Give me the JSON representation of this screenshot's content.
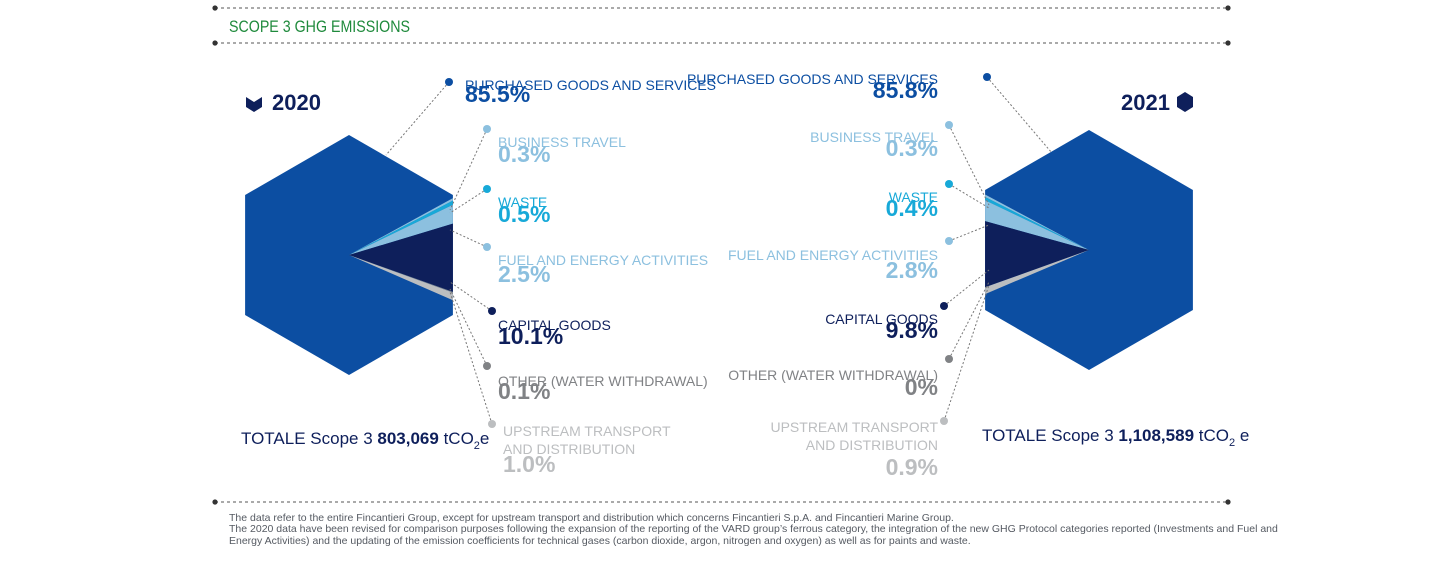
{
  "header": {
    "title": "SCOPE 3 GHG EMISSIONS"
  },
  "colors": {
    "title_green": "#1f8a3c",
    "navy": "#0e1f5b",
    "blue": "#0c4ea2",
    "light_blue": "#8cc0df",
    "cyan": "#17a9d8",
    "gray": "#808285",
    "light_gray": "#bcbec0",
    "divider": "#555555"
  },
  "chart_data": [
    {
      "type": "pie",
      "title": "2020",
      "categories": [
        "PURCHASED GOODS AND SERVICES",
        "BUSINESS TRAVEL",
        "WASTE",
        "FUEL AND ENERGY ACTIVITIES",
        "CAPITAL GOODS",
        "OTHER (WATER WITHDRAWAL)",
        "UPSTREAM TRANSPORT AND DISTRIBUTION"
      ],
      "value_labels": [
        "85.5%",
        "0.3%",
        "0.5%",
        "2.5%",
        "10.1%",
        "0.1%",
        "1.0%"
      ],
      "values": [
        85.5,
        0.3,
        0.5,
        2.5,
        10.1,
        0.1,
        1.0
      ],
      "total": {
        "prefix": "TOTALE Scope 3 ",
        "value": "803,069",
        "unit": " tCO",
        "sub": "2",
        "suffix": "e"
      }
    },
    {
      "type": "pie",
      "title": "2021",
      "categories": [
        "PURCHASED GOODS AND SERVICES",
        "BUSINESS TRAVEL",
        "WASTE",
        "FUEL AND ENERGY ACTIVITIES",
        "CAPITAL GOODS",
        "OTHER (WATER WITHDRAWAL)",
        "UPSTREAM TRANSPORT AND DISTRIBUTION"
      ],
      "value_labels": [
        "85.8%",
        "0.3%",
        "0.4%",
        "2.8%",
        "9.8%",
        "0%",
        "0.9%"
      ],
      "values": [
        85.8,
        0.3,
        0.4,
        2.8,
        9.8,
        0,
        0.9
      ],
      "total": {
        "prefix": "TOTALE Scope 3 ",
        "value": "1,108,589",
        "unit": " tCO",
        "sub": "2",
        "suffix": " e"
      }
    }
  ],
  "footnote": [
    "The data refer to the entire Fincantieri Group, except for upstream transport and distribution which concerns Fincantieri S.p.A. and Fincantieri Marine Group.",
    "The 2020 data have been revised for comparison purposes following the expansion of the reporting of the VARD group’s ferrous category, the integration of the new GHG Protocol categories reported (Investments and Fuel and Energy Activities) and the updating of the emission coefficients for technical gases (carbon dioxide, argon, nitrogen and oxygen) as well as for paints and waste."
  ]
}
